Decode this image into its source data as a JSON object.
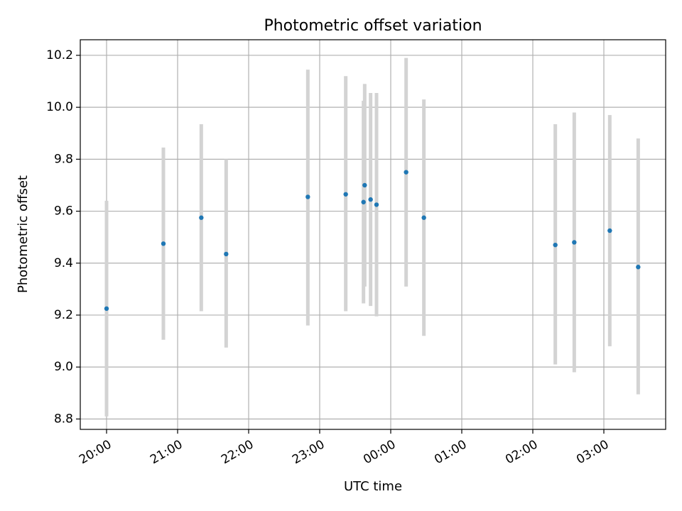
{
  "chart_data": {
    "type": "scatter",
    "title": "Photometric offset variation",
    "xlabel": "UTC time",
    "ylabel": "Photometric offset",
    "grid": true,
    "x_tick_labels": [
      "20:00",
      "21:00",
      "22:00",
      "23:00",
      "00:00",
      "01:00",
      "02:00",
      "03:00"
    ],
    "x_tick_hours": [
      0,
      1,
      2,
      3,
      4,
      5,
      6,
      7
    ],
    "xlim_hours": [
      -0.37,
      7.87
    ],
    "ylim": [
      8.76,
      10.26
    ],
    "y_ticks": [
      8.8,
      9.0,
      9.2,
      9.4,
      9.6,
      9.8,
      10.0,
      10.2
    ],
    "y_tick_labels": [
      "8.8",
      "9.0",
      "9.2",
      "9.4",
      "9.6",
      "9.8",
      "10.0",
      "10.2"
    ],
    "colors": {
      "marker": "#1f77b4",
      "errorbar": "#d3d3d3"
    },
    "series": [
      {
        "points": [
          {
            "time": "20:00",
            "y": 9.225,
            "ylow": 8.81,
            "yhigh": 9.64
          },
          {
            "time": "20:48",
            "y": 9.475,
            "ylow": 9.105,
            "yhigh": 9.845
          },
          {
            "time": "21:20",
            "y": 9.575,
            "ylow": 9.215,
            "yhigh": 9.935
          },
          {
            "time": "21:41",
            "y": 9.435,
            "ylow": 9.075,
            "yhigh": 9.8
          },
          {
            "time": "22:50",
            "y": 9.655,
            "ylow": 9.16,
            "yhigh": 10.145
          },
          {
            "time": "23:22",
            "y": 9.665,
            "ylow": 9.215,
            "yhigh": 10.12
          },
          {
            "time": "23:37",
            "y": 9.635,
            "ylow": 9.245,
            "yhigh": 10.025
          },
          {
            "time": "23:38",
            "y": 9.7,
            "ylow": 9.31,
            "yhigh": 10.09
          },
          {
            "time": "23:43",
            "y": 9.645,
            "ylow": 9.235,
            "yhigh": 10.055
          },
          {
            "time": "23:48",
            "y": 9.625,
            "ylow": 9.195,
            "yhigh": 10.055
          },
          {
            "time": "00:13",
            "y": 9.75,
            "ylow": 9.31,
            "yhigh": 10.19
          },
          {
            "time": "00:28",
            "y": 9.575,
            "ylow": 9.12,
            "yhigh": 10.03
          },
          {
            "time": "02:19",
            "y": 9.47,
            "ylow": 9.01,
            "yhigh": 9.935
          },
          {
            "time": "02:35",
            "y": 9.48,
            "ylow": 8.98,
            "yhigh": 9.98
          },
          {
            "time": "03:05",
            "y": 9.525,
            "ylow": 9.08,
            "yhigh": 9.97
          },
          {
            "time": "03:29",
            "y": 9.385,
            "ylow": 8.895,
            "yhigh": 9.88
          }
        ]
      }
    ]
  }
}
